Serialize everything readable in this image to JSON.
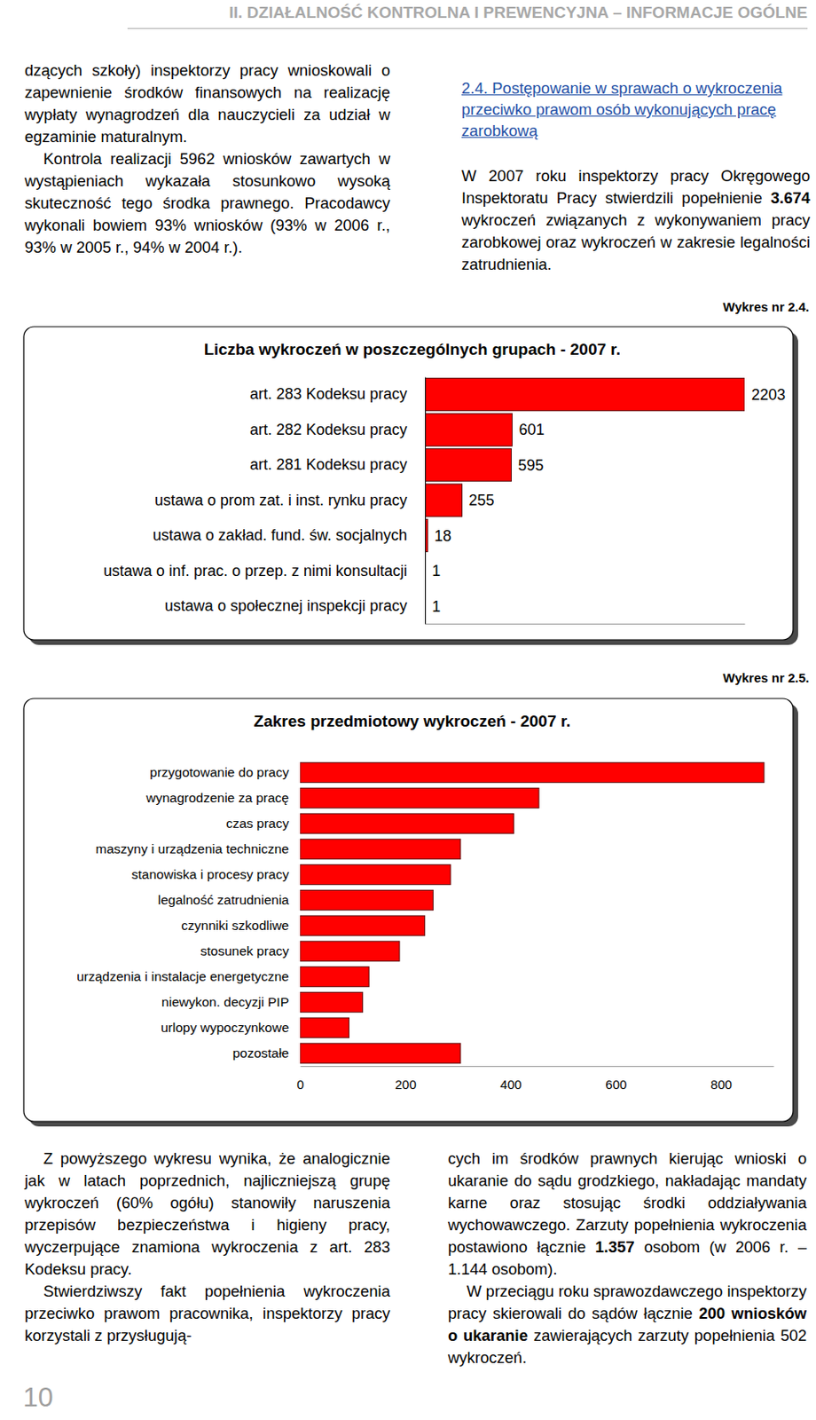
{
  "header": {
    "title": "II. DZIAŁALNOŚĆ KONTROLNA I PREWENCYJNA – INFORMACJE OGÓLNE"
  },
  "left_column": {
    "paragraphs": [
      [
        "dzących szkoły) inspektorzy pracy wnioskowali o zapewnienie środków finansowych na realizację wypłaty wynagrodzeń dla nauczycieli za udział w egzaminie maturalnym."
      ],
      [
        "Kontrola realizacji 5962 wniosków zawartych w wystąpieniach wykazała stosunkowo wysoką skuteczność tego środka prawnego. Pracodawcy wykonali bowiem 93% wniosków (93% w 2006 r., 93% w 2005 r., 94% w 2004 r.)."
      ]
    ]
  },
  "heading": "2.4. Postępowanie w sprawach o wykroczenia przeciwko prawom osób wykonujących pracę zarobkową",
  "right_column": {
    "paragraphs": [
      [
        "W 2007 roku inspektorzy pracy Okręgowego Inspektoratu Pracy stwierdzili popełnienie ",
        {
          "text": "3.674",
          "bold": true
        },
        " wykroczeń związanych z wykonywaniem pracy zarobkowej oraz wykroczeń w zakresie legalności zatrudnienia."
      ]
    ]
  },
  "figure_labels": [
    "Wykres nr 2.4.",
    "Wykres nr 2.5."
  ],
  "chart_data": [
    {
      "type": "bar",
      "orientation": "horizontal",
      "title": "Liczba wykroczeń w poszczególnych grupach - 2007 r.",
      "categories": [
        "art. 283 Kodeksu pracy",
        "art. 282 Kodeksu pracy",
        "art. 281 Kodeksu pracy",
        "ustawa o prom zat. i inst. rynku pracy",
        "ustawa o zakład. fund. św. socjalnych",
        "ustawa o inf. prac. o przep. z nimi konsultacji",
        "ustawa o społecznej inspekcji pracy"
      ],
      "values": [
        2203,
        601,
        595,
        255,
        18,
        1,
        1
      ],
      "color": "#ff0000",
      "xlim": [
        0,
        2203
      ],
      "xticks": [],
      "data_labels": true,
      "tick_labels": "y"
    },
    {
      "type": "bar",
      "orientation": "horizontal",
      "title": "Zakres przedmiotowy wykroczeń - 2007 r.",
      "categories": [
        "przygotowanie do pracy",
        "wynagrodzenie za pracę",
        "czas pracy",
        "maszyny i urządzenia techniczne",
        "stanowiska i procesy pracy",
        "legalność zatrudnienia",
        "czynniki szkodliwe",
        "stosunek pracy",
        "urządzenia i instalacje energetyczne",
        "niewykon. decyzji PIP",
        "urlopy wypoczynkowe",
        "pozostałe"
      ],
      "values": [
        882,
        454,
        406,
        305,
        286,
        253,
        237,
        189,
        131,
        119,
        93,
        305
      ],
      "color": "#ff0000",
      "xlim": [
        0,
        900
      ],
      "xticks": [
        0,
        200,
        400,
        600,
        800
      ],
      "data_labels": false
    }
  ],
  "bottom_left": {
    "paragraphs": [
      [
        "Z powyższego wykresu wynika, że analogicznie jak w latach poprzednich, najliczniejszą grupę wykroczeń (60% ogółu) stanowiły naruszenia przepisów bezpieczeństwa i higieny pracy, wyczerpujące znamiona wykroczenia z art. 283 Kodeksu pracy."
      ],
      [
        "Stwierdziwszy fakt popełnienia wykroczenia przeciwko prawom pracownika, inspektorzy pracy korzystali z przysługują-"
      ]
    ]
  },
  "bottom_right": {
    "paragraphs": [
      [
        "cych im środków prawnych kierując wnioski o ukaranie do sądu grodzkiego, nakładając mandaty karne oraz stosując środki oddziaływania wychowawczego. Zarzuty popełnienia wykroczenia postawiono łącznie ",
        {
          "text": "1.357",
          "bold": true
        },
        " osobom (w 2006 r. – 1.144 osobom)."
      ],
      [
        "W przeciągu roku sprawozdawczego inspektorzy pracy skierowali do sądów łącznie ",
        {
          "text": "200 wniosków o ukaranie",
          "bold": true
        },
        " zawierających zarzuty popełnienia 502 wykroczeń."
      ]
    ]
  },
  "page_number": "10"
}
